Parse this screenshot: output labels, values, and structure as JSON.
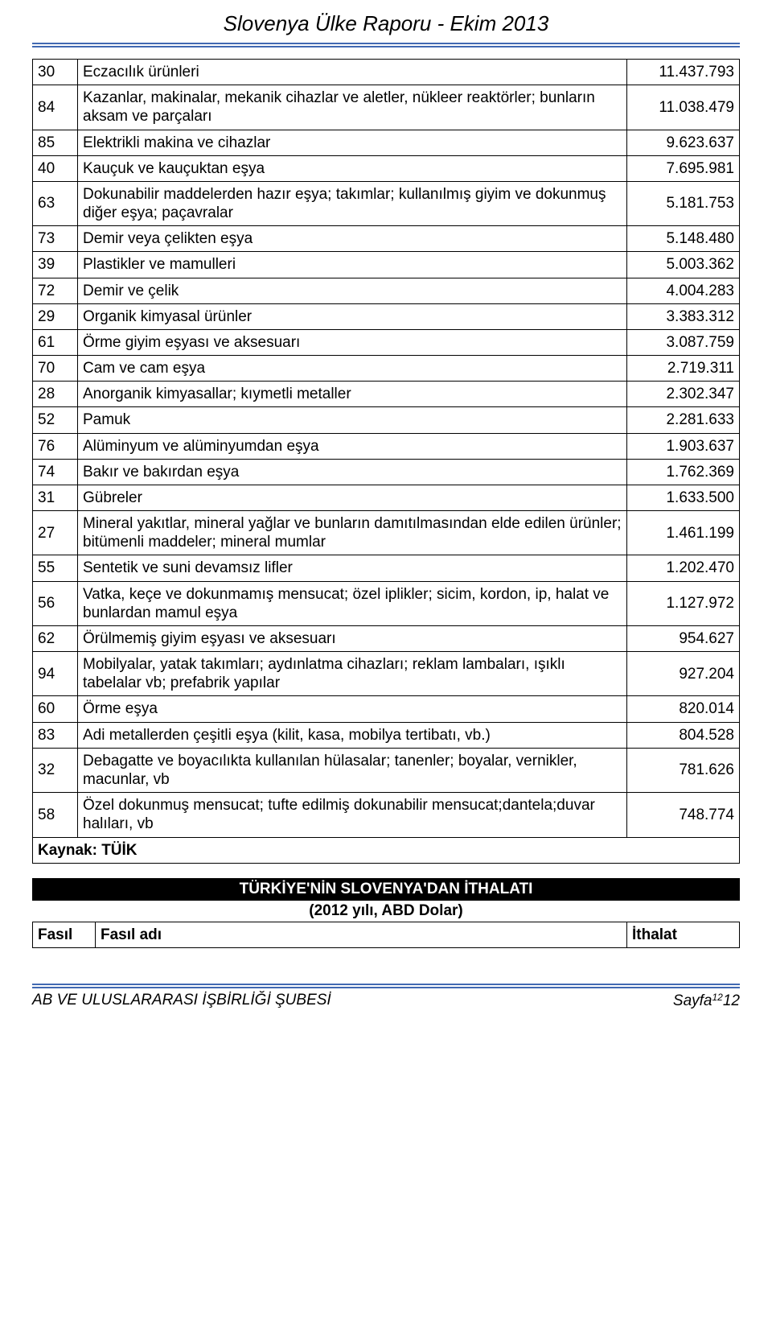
{
  "header": {
    "title": "Slovenya Ülke Raporu - Ekim 2013"
  },
  "colors": {
    "underline": "#4169b2",
    "band_bg": "#000000",
    "band_fg": "#ffffff",
    "border": "#000000",
    "text": "#000000",
    "bg": "#ffffff"
  },
  "table": {
    "columns": [
      "code",
      "description",
      "value"
    ],
    "rows": [
      {
        "code": "30",
        "desc": "Eczacılık ürünleri",
        "val": "11.437.793"
      },
      {
        "code": "84",
        "desc": "Kazanlar, makinalar, mekanik cihazlar ve aletler, nükleer reaktörler; bunların aksam ve parçaları",
        "val": "11.038.479"
      },
      {
        "code": "85",
        "desc": "Elektrikli makina ve cihazlar",
        "val": "9.623.637"
      },
      {
        "code": "40",
        "desc": "Kauçuk ve kauçuktan eşya",
        "val": "7.695.981"
      },
      {
        "code": "63",
        "desc": "Dokunabilir maddelerden hazır eşya; takımlar; kullanılmış giyim ve dokunmuş diğer eşya; paçavralar",
        "val": "5.181.753"
      },
      {
        "code": "73",
        "desc": "Demir veya çelikten eşya",
        "val": "5.148.480"
      },
      {
        "code": "39",
        "desc": "Plastikler ve mamulleri",
        "val": "5.003.362"
      },
      {
        "code": "72",
        "desc": "Demir ve çelik",
        "val": "4.004.283"
      },
      {
        "code": "29",
        "desc": "Organik kimyasal ürünler",
        "val": "3.383.312"
      },
      {
        "code": "61",
        "desc": "Örme giyim eşyası ve aksesuarı",
        "val": "3.087.759"
      },
      {
        "code": "70",
        "desc": "Cam ve cam eşya",
        "val": "2.719.311"
      },
      {
        "code": "28",
        "desc": "Anorganik kimyasallar; kıymetli metaller",
        "val": "2.302.347"
      },
      {
        "code": "52",
        "desc": "Pamuk",
        "val": "2.281.633"
      },
      {
        "code": "76",
        "desc": "Alüminyum ve alüminyumdan eşya",
        "val": "1.903.637"
      },
      {
        "code": "74",
        "desc": "Bakır ve bakırdan eşya",
        "val": "1.762.369"
      },
      {
        "code": "31",
        "desc": "Gübreler",
        "val": "1.633.500"
      },
      {
        "code": "27",
        "desc": "Mineral yakıtlar, mineral yağlar ve bunların damıtılmasından elde edilen ürünler; bitümenli maddeler; mineral mumlar",
        "val": "1.461.199"
      },
      {
        "code": "55",
        "desc": "Sentetik ve suni devamsız lifler",
        "val": "1.202.470"
      },
      {
        "code": "56",
        "desc": "Vatka, keçe ve dokunmamış mensucat; özel iplikler; sicim, kordon, ip, halat ve bunlardan mamul eşya",
        "val": "1.127.972"
      },
      {
        "code": "62",
        "desc": "Örülmemiş giyim eşyası ve aksesuarı",
        "val": "954.627"
      },
      {
        "code": "94",
        "desc": "Mobilyalar, yatak takımları; aydınlatma cihazları; reklam lambaları, ışıklı tabelalar vb; prefabrik yapılar",
        "val": "927.204"
      },
      {
        "code": "60",
        "desc": "Örme eşya",
        "val": "820.014"
      },
      {
        "code": "83",
        "desc": "Adi metallerden çeşitli eşya (kilit, kasa, mobilya tertibatı, vb.)",
        "val": "804.528"
      },
      {
        "code": "32",
        "desc": "Debagatte ve boyacılıkta kullanılan hülasalar; tanenler; boyalar, vernikler, macunlar, vb",
        "val": "781.626"
      },
      {
        "code": "58",
        "desc": "Özel dokunmuş mensucat; tufte edilmiş dokunabilir mensucat;dantela;duvar halıları, vb",
        "val": "748.774"
      }
    ],
    "source_label": "Kaynak: TÜİK"
  },
  "section": {
    "title": "TÜRKİYE'NİN SLOVENYA'DAN İTHALATI",
    "subtitle": "(2012 yılı, ABD Dolar)",
    "header_cols": {
      "c1": "Fasıl",
      "c2": "Fasıl adı",
      "c3": "İthalat"
    }
  },
  "footer": {
    "left": "AB VE ULUSLARARASI İŞBİRLİĞİ ŞUBESİ",
    "right_prefix": "Sayfa",
    "page_small": "12",
    "page_num": "12"
  }
}
